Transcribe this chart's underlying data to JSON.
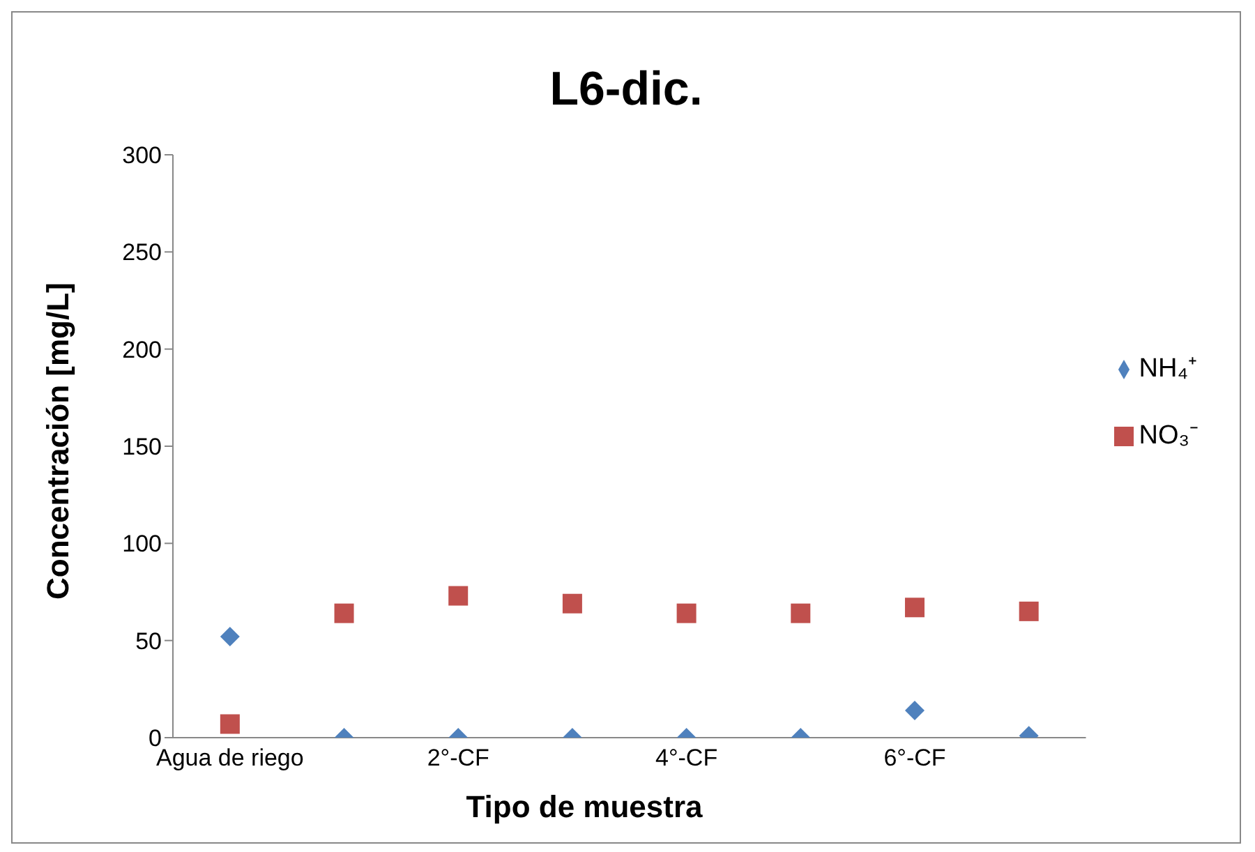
{
  "chart_data": {
    "type": "scatter",
    "title": "L6-dic.",
    "xlabel": "Tipo de muestra",
    "ylabel": "Concentración [mg/L]",
    "categories": [
      "Agua de riego",
      null,
      "2°-CF",
      null,
      "4°-CF",
      null,
      "6°-CF",
      null
    ],
    "series": [
      {
        "name": "NH₄⁺",
        "color": "#4f81bd",
        "marker": "diamond",
        "values": [
          52,
          0,
          0,
          0,
          0,
          0,
          14,
          1
        ]
      },
      {
        "name": "NO₃⁻",
        "color": "#c0504d",
        "marker": "square",
        "values": [
          7,
          64,
          73,
          69,
          64,
          64,
          67,
          65
        ]
      }
    ],
    "ylim": [
      0,
      300
    ],
    "yticks": [
      0,
      50,
      100,
      150,
      200,
      250,
      300
    ],
    "grid": false,
    "legend": "right"
  }
}
